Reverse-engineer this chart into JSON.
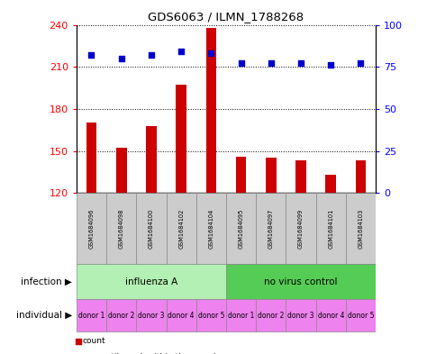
{
  "title": "GDS6063 / ILMN_1788268",
  "samples": [
    "GSM1684096",
    "GSM1684098",
    "GSM1684100",
    "GSM1684102",
    "GSM1684104",
    "GSM1684095",
    "GSM1684097",
    "GSM1684099",
    "GSM1684101",
    "GSM1684103"
  ],
  "counts": [
    170,
    152,
    168,
    197,
    238,
    146,
    145,
    143,
    133,
    143
  ],
  "percentiles": [
    82,
    80,
    82,
    84,
    83,
    77,
    77,
    77,
    76,
    77
  ],
  "ylim_left": [
    120,
    240
  ],
  "ylim_right": [
    0,
    100
  ],
  "yticks_left": [
    120,
    150,
    180,
    210,
    240
  ],
  "yticks_right": [
    0,
    25,
    50,
    75,
    100
  ],
  "bar_color": "#cc0000",
  "dot_color": "#0000cc",
  "sample_bg": "#cccccc",
  "inf_color_1": "#b3f0b3",
  "inf_color_2": "#55cc55",
  "ind_color": "#ee82ee",
  "bar_width": 0.35,
  "legend_count_color": "#cc0000",
  "legend_pct_color": "#0000cc",
  "individual_labels": [
    "donor 1",
    "donor 2",
    "donor 3",
    "donor 4",
    "donor 5",
    "donor 1",
    "donor 2",
    "donor 3",
    "donor 4",
    "donor 5"
  ]
}
